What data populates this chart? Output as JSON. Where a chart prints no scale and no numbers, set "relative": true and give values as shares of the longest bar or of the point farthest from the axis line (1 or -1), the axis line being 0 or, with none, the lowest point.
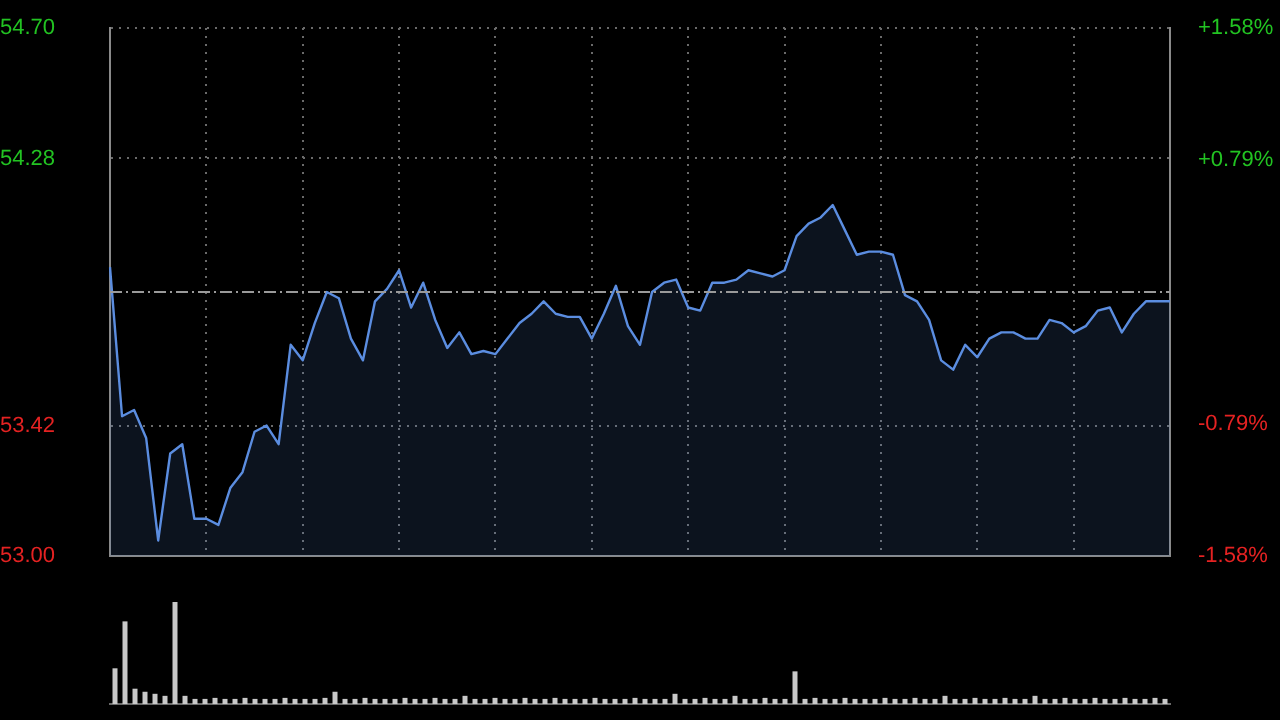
{
  "chart_data": [
    {
      "type": "area",
      "categories": [
        null,
        null,
        null,
        null,
        null,
        null,
        null,
        null,
        null,
        null,
        null,
        null,
        null,
        null,
        null,
        null,
        null,
        null,
        null,
        null,
        null,
        null,
        null,
        null,
        null,
        null,
        null,
        null,
        null,
        null,
        null,
        null,
        null,
        null,
        null,
        null,
        null,
        null,
        null,
        null,
        null,
        null,
        null,
        null,
        null,
        null,
        null,
        null,
        null,
        null,
        null,
        null,
        null,
        null,
        null,
        null,
        null,
        null,
        null,
        null,
        null,
        null,
        null,
        null,
        null,
        null,
        null,
        null,
        null,
        null,
        null,
        null,
        null,
        null,
        null,
        null,
        null,
        null,
        null,
        null,
        null,
        null,
        null,
        null,
        null,
        null,
        null,
        null,
        null
      ],
      "series": [
        {
          "color": "#5b8de0",
          "values": [
            53.93,
            53.45,
            53.47,
            53.38,
            53.05,
            53.33,
            53.36,
            53.12,
            53.12,
            53.1,
            53.22,
            53.27,
            53.4,
            53.42,
            53.36,
            53.68,
            53.63,
            53.75,
            53.85,
            53.83,
            53.7,
            53.63,
            53.82,
            53.86,
            53.92,
            53.8,
            53.88,
            53.76,
            53.67,
            53.72,
            53.65,
            53.66,
            53.65,
            53.7,
            53.75,
            53.78,
            53.82,
            53.78,
            53.77,
            53.77,
            53.7,
            53.78,
            53.87,
            53.74,
            53.68,
            53.85,
            53.88,
            53.89,
            53.8,
            53.79,
            53.88,
            53.88,
            53.89,
            53.92,
            53.91,
            53.9,
            53.92,
            54.03,
            54.07,
            54.09,
            54.13,
            54.05,
            53.97,
            53.98,
            53.98,
            53.97,
            53.84,
            53.82,
            53.76,
            53.63,
            53.6,
            53.68,
            53.64,
            53.7,
            53.72,
            53.72,
            53.7,
            53.7,
            53.76,
            53.75,
            53.72,
            53.74,
            53.79,
            53.8,
            53.72,
            53.78,
            53.82,
            53.82,
            53.82
          ]
        }
      ],
      "marker": "none",
      "grid": true,
      "ylim": [
        53.0,
        54.7
      ],
      "yticks": [
        {
          "value": 53.0,
          "label": "53.00"
        },
        {
          "value": 53.42,
          "label": "53.42"
        },
        {
          "value": 54.28,
          "label": "54.28"
        },
        {
          "value": 54.7,
          "label": "54.70"
        }
      ],
      "y2lim": [
        -1.58,
        1.58
      ],
      "y2ticks": [
        {
          "value": -1.58,
          "label": "-1.58%"
        },
        {
          "value": -0.79,
          "label": "-0.79%"
        },
        {
          "value": 0.79,
          "label": "+0.79%"
        },
        {
          "value": 1.58,
          "label": "+1.58%"
        }
      ],
      "ref_lines": [
        {
          "axis": "y",
          "value": 53.85,
          "color": "#9a9a9a",
          "line_style": "dashed"
        }
      ]
    },
    {
      "type": "bar",
      "relative": true,
      "color": "#c8c8c8",
      "categories": [
        null,
        null,
        null,
        null,
        null,
        null,
        null,
        null,
        null,
        null,
        null,
        null,
        null,
        null,
        null,
        null,
        null,
        null,
        null,
        null,
        null,
        null,
        null,
        null,
        null,
        null,
        null,
        null,
        null,
        null,
        null,
        null,
        null,
        null,
        null,
        null,
        null,
        null,
        null,
        null,
        null,
        null,
        null,
        null,
        null,
        null,
        null,
        null,
        null,
        null,
        null,
        null,
        null,
        null,
        null,
        null,
        null,
        null,
        null,
        null,
        null,
        null,
        null,
        null,
        null,
        null,
        null,
        null,
        null,
        null,
        null,
        null,
        null,
        null,
        null,
        null,
        null,
        null,
        null,
        null,
        null,
        null,
        null,
        null,
        null,
        null,
        null,
        null,
        null,
        null,
        null,
        null,
        null,
        null,
        null,
        null,
        null,
        null,
        null,
        null,
        null,
        null,
        null,
        null,
        null,
        null
      ],
      "values": [
        0.35,
        0.81,
        0.15,
        0.12,
        0.1,
        0.08,
        1,
        0.08,
        0.05,
        0.05,
        0.06,
        0.05,
        0.05,
        0.06,
        0.05,
        0.05,
        0.05,
        0.06,
        0.05,
        0.05,
        0.05,
        0.06,
        0.12,
        0.05,
        0.05,
        0.06,
        0.05,
        0.05,
        0.05,
        0.06,
        0.05,
        0.05,
        0.06,
        0.05,
        0.05,
        0.08,
        0.05,
        0.05,
        0.06,
        0.05,
        0.05,
        0.06,
        0.05,
        0.05,
        0.06,
        0.05,
        0.05,
        0.05,
        0.06,
        0.05,
        0.05,
        0.05,
        0.06,
        0.05,
        0.05,
        0.05,
        0.1,
        0.05,
        0.05,
        0.06,
        0.05,
        0.05,
        0.08,
        0.05,
        0.05,
        0.06,
        0.05,
        0.05,
        0.32,
        0.05,
        0.06,
        0.05,
        0.05,
        0.06,
        0.05,
        0.05,
        0.05,
        0.06,
        0.05,
        0.05,
        0.06,
        0.05,
        0.05,
        0.08,
        0.05,
        0.05,
        0.06,
        0.05,
        0.05,
        0.06,
        0.05,
        0.05,
        0.08,
        0.05,
        0.05,
        0.06,
        0.05,
        0.05,
        0.06,
        0.05,
        0.05,
        0.06,
        0.05,
        0.05,
        0.06,
        0.05
      ]
    }
  ]
}
